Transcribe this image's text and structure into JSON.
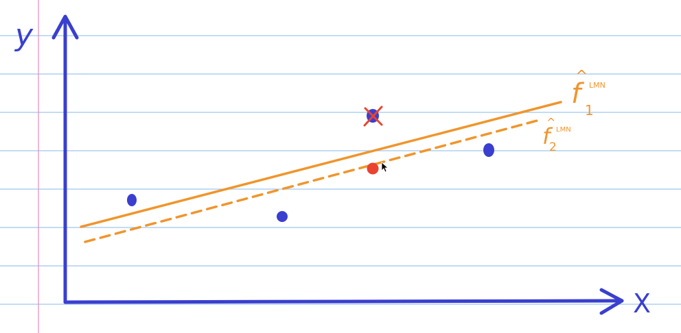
{
  "colors": {
    "paper": "#ffffff",
    "ruled_line": "#9ec6ec",
    "margin_line": "#e58ab7",
    "axis": "#3a3fcf",
    "fit_line": "#f0952c",
    "new_point": "#e8442e",
    "removed_mark": "#e8442e",
    "cursor": "#000000"
  },
  "axes": {
    "x_label": "X",
    "y_label": "y"
  },
  "lines": {
    "f1": {
      "label": "f",
      "subscript": "1",
      "superscript": "LMN",
      "accent": "hat",
      "style": "solid"
    },
    "f2": {
      "label": "f",
      "subscript": "2",
      "superscript": "LMN",
      "accent": "hat",
      "style": "dashed"
    }
  },
  "points": [
    {
      "name": "data-point-1",
      "status": "kept"
    },
    {
      "name": "data-point-2",
      "status": "kept"
    },
    {
      "name": "data-point-3",
      "status": "removed"
    },
    {
      "name": "data-point-4",
      "status": "kept"
    },
    {
      "name": "data-point-new",
      "status": "replacement"
    }
  ]
}
